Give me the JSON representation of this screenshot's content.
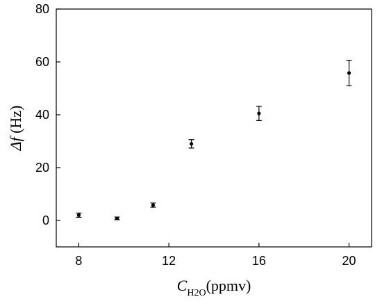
{
  "chart_data": {
    "type": "scatter",
    "xlabel": {
      "symbol": "C",
      "subscript": "H2O",
      "unit": "(ppmv)"
    },
    "ylabel": {
      "symbol": "Δf",
      "unit": " (Hz)"
    },
    "xlim": [
      7,
      21
    ],
    "ylim": [
      -10,
      80
    ],
    "xticks": [
      8,
      12,
      16,
      20
    ],
    "yticks": [
      0,
      20,
      40,
      60,
      80
    ],
    "points": [
      {
        "x": 8.0,
        "y": 2.0,
        "err": 0.8
      },
      {
        "x": 9.7,
        "y": 0.8,
        "err": 0.5
      },
      {
        "x": 11.3,
        "y": 5.8,
        "err": 0.8
      },
      {
        "x": 13.0,
        "y": 29.0,
        "err": 1.6
      },
      {
        "x": 16.0,
        "y": 40.5,
        "err": 2.7
      },
      {
        "x": 20.0,
        "y": 55.8,
        "err": 4.8
      }
    ]
  }
}
